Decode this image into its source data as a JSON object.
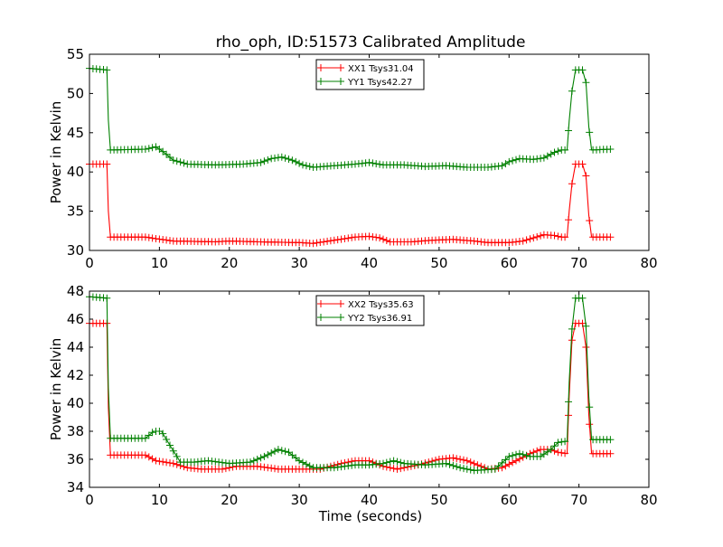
{
  "figure": {
    "title": "rho_oph, ID:51573 Calibrated Amplitude",
    "xlabel": "Time (seconds)"
  },
  "chart_data": [
    {
      "type": "line",
      "title": "rho_oph, ID:51573 Calibrated Amplitude",
      "xlabel": "",
      "ylabel": "Power in Kelvin",
      "xlim": [
        0,
        80
      ],
      "ylim": [
        30,
        55
      ],
      "xticks": [
        0,
        10,
        20,
        30,
        40,
        50,
        60,
        70,
        80
      ],
      "yticks": [
        30,
        35,
        40,
        45,
        50,
        55
      ],
      "grid": false,
      "legend": "top-center",
      "series": [
        {
          "name": "XX1 Tsys31.04",
          "color": "#ff0000",
          "marker": "+",
          "points": [
            [
              0,
              41.0
            ],
            [
              2.5,
              41.0
            ],
            [
              2.7,
              35
            ],
            [
              3,
              31.7
            ],
            [
              8,
              31.7
            ],
            [
              9.5,
              31.5
            ],
            [
              12,
              31.2
            ],
            [
              18,
              31.1
            ],
            [
              20,
              31.2
            ],
            [
              24,
              31.1
            ],
            [
              30,
              31.0
            ],
            [
              32,
              30.9
            ],
            [
              35,
              31.3
            ],
            [
              38,
              31.7
            ],
            [
              40,
              31.8
            ],
            [
              41.5,
              31.6
            ],
            [
              43,
              31.1
            ],
            [
              46,
              31.1
            ],
            [
              49,
              31.3
            ],
            [
              52,
              31.4
            ],
            [
              55,
              31.2
            ],
            [
              57,
              31.0
            ],
            [
              60,
              31.0
            ],
            [
              62,
              31.2
            ],
            [
              63.5,
              31.6
            ],
            [
              65,
              32.0
            ],
            [
              66.5,
              31.9
            ],
            [
              67.5,
              31.7
            ],
            [
              68.3,
              31.7
            ],
            [
              68.6,
              35
            ],
            [
              69,
              38.5
            ],
            [
              69.5,
              41.0
            ],
            [
              70.5,
              41.0
            ],
            [
              71,
              39.5
            ],
            [
              71.4,
              34.5
            ],
            [
              71.8,
              31.7
            ],
            [
              74.5,
              31.7
            ]
          ]
        },
        {
          "name": "YY1 Tsys42.27",
          "color": "#008000",
          "marker": "+",
          "points": [
            [
              0,
              53.2
            ],
            [
              2.5,
              53.0
            ],
            [
              2.7,
              46.6
            ],
            [
              3,
              42.8
            ],
            [
              8,
              42.9
            ],
            [
              9.5,
              43.2
            ],
            [
              10.5,
              42.6
            ],
            [
              12,
              41.5
            ],
            [
              14,
              41.0
            ],
            [
              18,
              40.9
            ],
            [
              22,
              41.0
            ],
            [
              24.5,
              41.2
            ],
            [
              26,
              41.7
            ],
            [
              27.5,
              41.9
            ],
            [
              29,
              41.5
            ],
            [
              30.5,
              40.9
            ],
            [
              32,
              40.6
            ],
            [
              35,
              40.8
            ],
            [
              38,
              41.0
            ],
            [
              40,
              41.2
            ],
            [
              42,
              40.9
            ],
            [
              45,
              40.9
            ],
            [
              48,
              40.7
            ],
            [
              51,
              40.8
            ],
            [
              54,
              40.6
            ],
            [
              57,
              40.6
            ],
            [
              59,
              40.8
            ],
            [
              60,
              41.3
            ],
            [
              61.5,
              41.7
            ],
            [
              63.5,
              41.6
            ],
            [
              65,
              41.8
            ],
            [
              66.5,
              42.5
            ],
            [
              67.5,
              42.8
            ],
            [
              68.3,
              42.8
            ],
            [
              68.6,
              46.5
            ],
            [
              69,
              50.3
            ],
            [
              69.5,
              53.0
            ],
            [
              70.5,
              53.0
            ],
            [
              71,
              51.4
            ],
            [
              71.4,
              45.8
            ],
            [
              71.8,
              42.8
            ],
            [
              74.5,
              42.9
            ]
          ]
        }
      ]
    },
    {
      "type": "line",
      "title": "",
      "xlabel": "Time (seconds)",
      "ylabel": "Power in Kelvin",
      "xlim": [
        0,
        80
      ],
      "ylim": [
        34,
        48
      ],
      "xticks": [
        0,
        10,
        20,
        30,
        40,
        50,
        60,
        70,
        80
      ],
      "yticks": [
        34,
        36,
        38,
        40,
        42,
        44,
        46,
        48
      ],
      "grid": false,
      "legend": "top-center",
      "series": [
        {
          "name": "XX2 Tsys35.63",
          "color": "#ff0000",
          "marker": "+",
          "points": [
            [
              0,
              45.7
            ],
            [
              2.5,
              45.7
            ],
            [
              2.7,
              39.7
            ],
            [
              3,
              36.3
            ],
            [
              8,
              36.3
            ],
            [
              9.5,
              35.9
            ],
            [
              12,
              35.7
            ],
            [
              14,
              35.4
            ],
            [
              16,
              35.3
            ],
            [
              19,
              35.3
            ],
            [
              21,
              35.5
            ],
            [
              24,
              35.5
            ],
            [
              27,
              35.3
            ],
            [
              30,
              35.3
            ],
            [
              33,
              35.3
            ],
            [
              36,
              35.7
            ],
            [
              38,
              35.9
            ],
            [
              40,
              35.9
            ],
            [
              42,
              35.5
            ],
            [
              44,
              35.3
            ],
            [
              47,
              35.6
            ],
            [
              50,
              36.0
            ],
            [
              52,
              36.1
            ],
            [
              54,
              35.9
            ],
            [
              57,
              35.3
            ],
            [
              59,
              35.4
            ],
            [
              61,
              35.9
            ],
            [
              63,
              36.4
            ],
            [
              64.5,
              36.7
            ],
            [
              66,
              36.7
            ],
            [
              67,
              36.5
            ],
            [
              68.3,
              36.4
            ],
            [
              68.6,
              40.5
            ],
            [
              69,
              44.5
            ],
            [
              69.5,
              45.7
            ],
            [
              70.5,
              45.7
            ],
            [
              71,
              44
            ],
            [
              71.4,
              39.2
            ],
            [
              71.8,
              36.4
            ],
            [
              74.5,
              36.4
            ]
          ]
        },
        {
          "name": "YY2 Tsys36.91",
          "color": "#008000",
          "marker": "+",
          "points": [
            [
              0,
              47.6
            ],
            [
              2.5,
              47.5
            ],
            [
              2.7,
              41.1
            ],
            [
              3,
              37.5
            ],
            [
              8,
              37.5
            ],
            [
              9.2,
              38.0
            ],
            [
              10.3,
              38.0
            ],
            [
              11.5,
              37.0
            ],
            [
              13,
              35.8
            ],
            [
              15,
              35.8
            ],
            [
              17,
              35.9
            ],
            [
              20,
              35.7
            ],
            [
              23,
              35.8
            ],
            [
              25,
              36.2
            ],
            [
              27,
              36.7
            ],
            [
              28.5,
              36.5
            ],
            [
              30,
              35.9
            ],
            [
              32,
              35.4
            ],
            [
              35,
              35.4
            ],
            [
              38,
              35.6
            ],
            [
              40,
              35.6
            ],
            [
              42,
              35.7
            ],
            [
              43.5,
              35.9
            ],
            [
              45,
              35.7
            ],
            [
              48,
              35.6
            ],
            [
              51,
              35.7
            ],
            [
              53,
              35.4
            ],
            [
              55,
              35.2
            ],
            [
              58,
              35.3
            ],
            [
              60,
              36.2
            ],
            [
              61.5,
              36.4
            ],
            [
              63,
              36.2
            ],
            [
              64.5,
              36.2
            ],
            [
              66,
              36.7
            ],
            [
              67,
              37.2
            ],
            [
              68.3,
              37.3
            ],
            [
              68.6,
              41.5
            ],
            [
              69,
              45.3
            ],
            [
              69.5,
              47.5
            ],
            [
              70.5,
              47.5
            ],
            [
              71,
              45.5
            ],
            [
              71.4,
              40.5
            ],
            [
              71.8,
              37.4
            ],
            [
              74.5,
              37.4
            ]
          ]
        }
      ]
    }
  ]
}
